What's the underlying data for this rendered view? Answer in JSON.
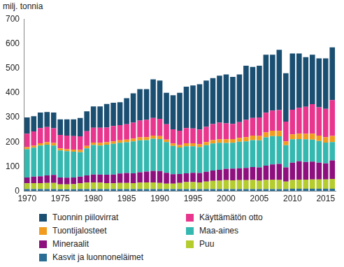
{
  "chart_data": {
    "type": "bar",
    "stacked": true,
    "grid": false,
    "ylabel": "milj. tonnia",
    "categories": [
      "1970",
      null,
      null,
      null,
      null,
      "1975",
      null,
      null,
      null,
      null,
      "1980",
      null,
      null,
      null,
      null,
      "1985",
      null,
      null,
      null,
      null,
      "1990",
      null,
      null,
      null,
      null,
      "1995",
      null,
      null,
      null,
      null,
      "2000",
      null,
      null,
      null,
      null,
      "2005",
      null,
      null,
      null,
      null,
      "2010",
      null,
      null,
      null,
      null,
      "2015",
      null
    ],
    "ylim": [
      0,
      700
    ],
    "yticks": [
      0,
      100,
      200,
      300,
      400,
      500,
      600,
      700
    ],
    "series": [
      {
        "name": "Kasvit ja luonnoneläimet",
        "color": "#2a6e96",
        "values": [
          9,
          9,
          9,
          9,
          9,
          8,
          8,
          8,
          9,
          9,
          9,
          9,
          9,
          9,
          9,
          9,
          9,
          9,
          9,
          9,
          9,
          9,
          9,
          9,
          9,
          9,
          9,
          9,
          9,
          9,
          9,
          9,
          9,
          9,
          9,
          9,
          9,
          9,
          9,
          9,
          10,
          10,
          10,
          10,
          10,
          10,
          10
        ]
      },
      {
        "name": "Puu",
        "color": "#b5cc2e",
        "values": [
          23,
          24,
          24,
          25,
          25,
          20,
          20,
          21,
          23,
          26,
          27,
          26,
          24,
          23,
          25,
          25,
          24,
          26,
          27,
          27,
          25,
          22,
          22,
          25,
          28,
          28,
          27,
          30,
          33,
          34,
          36,
          35,
          36,
          36,
          37,
          34,
          37,
          38,
          37,
          30,
          36,
          37,
          37,
          38,
          38,
          38,
          40
        ]
      },
      {
        "name": "Mineraalit",
        "color": "#8e0f7e",
        "values": [
          24,
          26,
          28,
          30,
          32,
          28,
          27,
          27,
          27,
          29,
          32,
          33,
          34,
          36,
          38,
          40,
          40,
          42,
          44,
          47,
          48,
          44,
          38,
          36,
          36,
          38,
          38,
          40,
          42,
          44,
          46,
          48,
          48,
          50,
          52,
          54,
          58,
          62,
          65,
          58,
          70,
          75,
          72,
          72,
          68,
          65,
          75
        ]
      },
      {
        "name": "Maa-aines",
        "color": "#35b8b0",
        "values": [
          115,
          118,
          125,
          125,
          120,
          110,
          108,
          105,
          100,
          110,
          120,
          118,
          122,
          125,
          125,
          125,
          130,
          130,
          128,
          130,
          130,
          125,
          115,
          108,
          110,
          108,
          105,
          108,
          110,
          110,
          105,
          105,
          108,
          108,
          110,
          110,
          115,
          115,
          112,
          90,
          95,
          90,
          92,
          90,
          88,
          85,
          75
        ]
      },
      {
        "name": "Tuontijalosteet",
        "color": "#f29c1f",
        "values": [
          8,
          8,
          9,
          10,
          10,
          8,
          8,
          8,
          9,
          10,
          10,
          10,
          10,
          10,
          10,
          11,
          11,
          12,
          12,
          13,
          12,
          10,
          10,
          10,
          12,
          12,
          12,
          13,
          14,
          14,
          15,
          15,
          16,
          17,
          18,
          18,
          20,
          22,
          22,
          16,
          20,
          22,
          22,
          24,
          22,
          22,
          25
        ]
      },
      {
        "name": "Käyttämätön otto",
        "color": "#e8358d",
        "values": [
          55,
          58,
          62,
          62,
          60,
          55,
          55,
          55,
          55,
          60,
          60,
          62,
          60,
          62,
          62,
          62,
          65,
          68,
          70,
          72,
          70,
          62,
          58,
          58,
          62,
          60,
          60,
          62,
          65,
          68,
          65,
          62,
          64,
          70,
          72,
          75,
          80,
          82,
          85,
          80,
          100,
          105,
          110,
          120,
          115,
          115,
          145
        ]
      },
      {
        "name": "Tuonnin piilovirrat",
        "color": "#1b4f72",
        "values": [
          66,
          62,
          63,
          61,
          64,
          63,
          66,
          68,
          75,
          81,
          87,
          87,
          96,
          95,
          93,
          106,
          119,
          128,
          125,
          157,
          156,
          128,
          138,
          154,
          168,
          175,
          184,
          188,
          187,
          191,
          199,
          191,
          194,
          220,
          207,
          210,
          236,
          227,
          245,
          197,
          229,
          221,
          202,
          201,
          199,
          205,
          215
        ]
      }
    ]
  }
}
